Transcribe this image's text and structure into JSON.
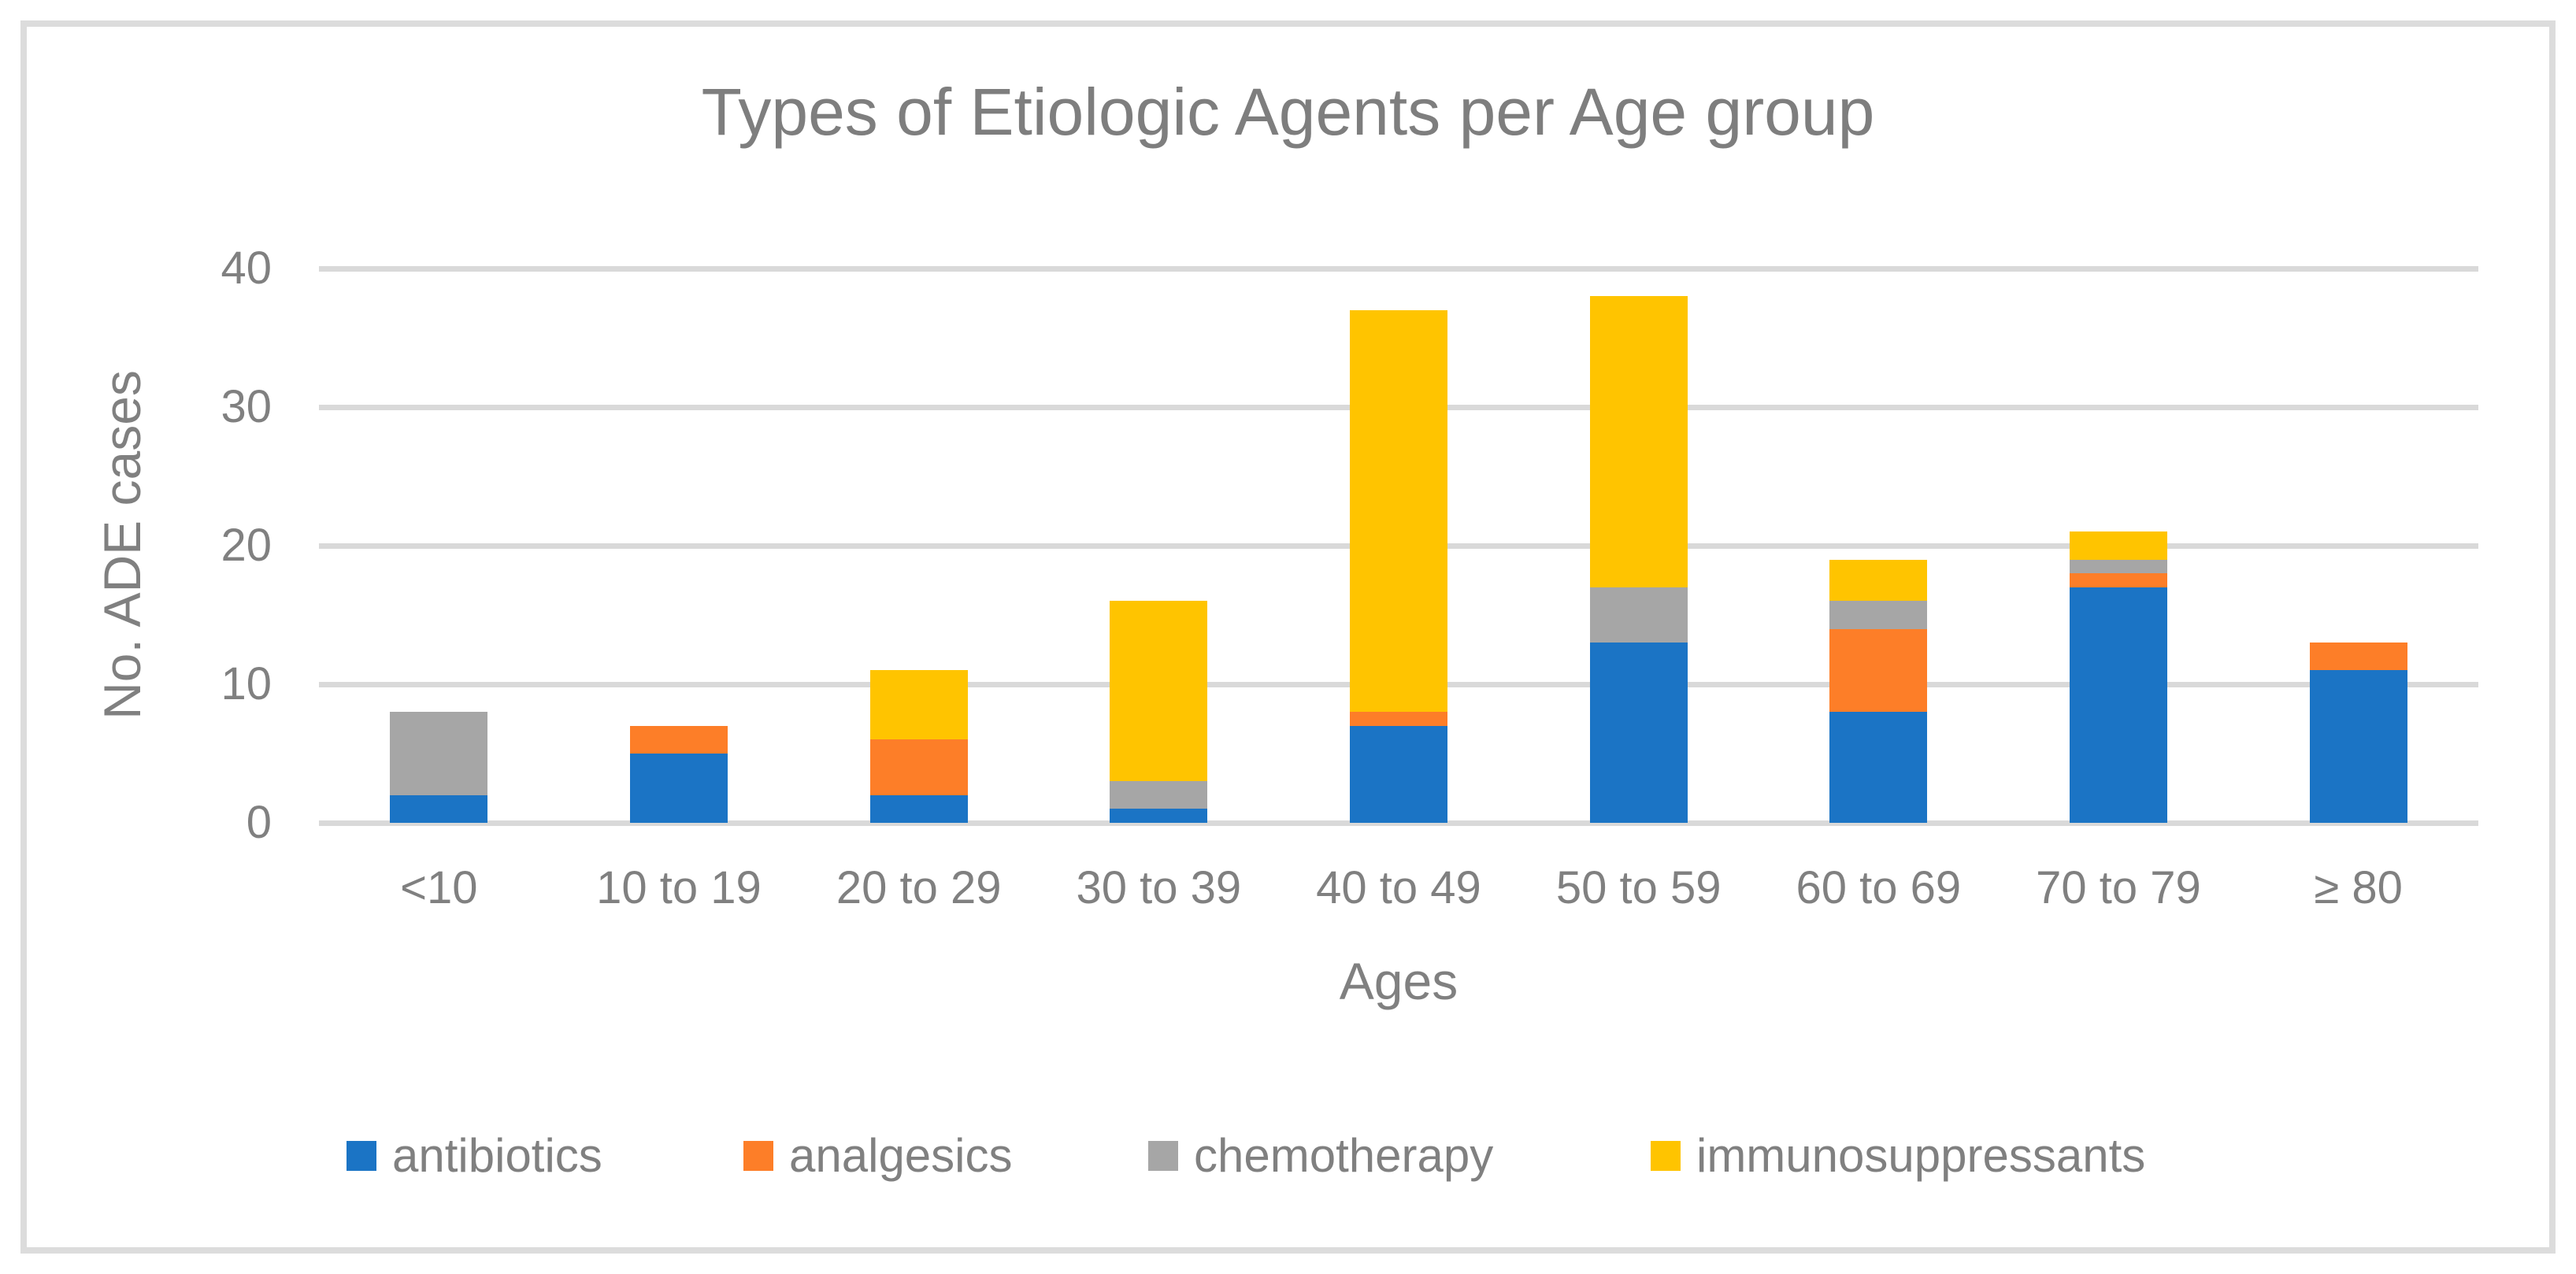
{
  "title": "Types of Etiologic Agents per Age group",
  "y_axis": {
    "label": "No. ADE cases",
    "ticks": [
      0,
      10,
      20,
      30,
      40
    ],
    "max": 40
  },
  "x_axis": {
    "label": "Ages"
  },
  "legend": {
    "items": [
      "antibiotics",
      "analgesics",
      "chemotherapy",
      "immunosuppressants"
    ]
  },
  "colors": {
    "antibiotics": "#1B74C5",
    "analgesics": "#FD7E28",
    "chemotherapy": "#A6A6A6",
    "immunosuppressants": "#FFC400",
    "gridline": "#D9D9D9",
    "text": "#808080",
    "frame_border": "#DCDCDC"
  },
  "chart_data": {
    "type": "bar",
    "stacked": true,
    "title": "Types of Etiologic Agents per Age group",
    "xlabel": "Ages",
    "ylabel": "No. ADE cases",
    "ylim": [
      0,
      40
    ],
    "yticks": [
      0,
      10,
      20,
      30,
      40
    ],
    "grid": true,
    "legend_position": "bottom",
    "categories": [
      "<10",
      "10 to 19",
      "20 to 29",
      "30 to 39",
      "40 to 49",
      "50 to 59",
      "60 to 69",
      "70 to 79",
      "≥ 80"
    ],
    "series": [
      {
        "name": "antibiotics",
        "color": "#1B74C5",
        "values": [
          2,
          5,
          2,
          1,
          7,
          13,
          8,
          17,
          11
        ]
      },
      {
        "name": "analgesics",
        "color": "#FD7E28",
        "values": [
          0,
          2,
          4,
          0,
          1,
          0,
          6,
          1,
          2
        ]
      },
      {
        "name": "chemotherapy",
        "color": "#A6A6A6",
        "values": [
          6,
          0,
          0,
          2,
          0,
          4,
          2,
          1,
          0
        ]
      },
      {
        "name": "immunosuppressants",
        "color": "#FFC400",
        "values": [
          0,
          0,
          5,
          13,
          29,
          21,
          3,
          2,
          0
        ]
      }
    ],
    "totals": [
      8,
      7,
      11,
      16,
      37,
      38,
      19,
      21,
      13
    ]
  }
}
